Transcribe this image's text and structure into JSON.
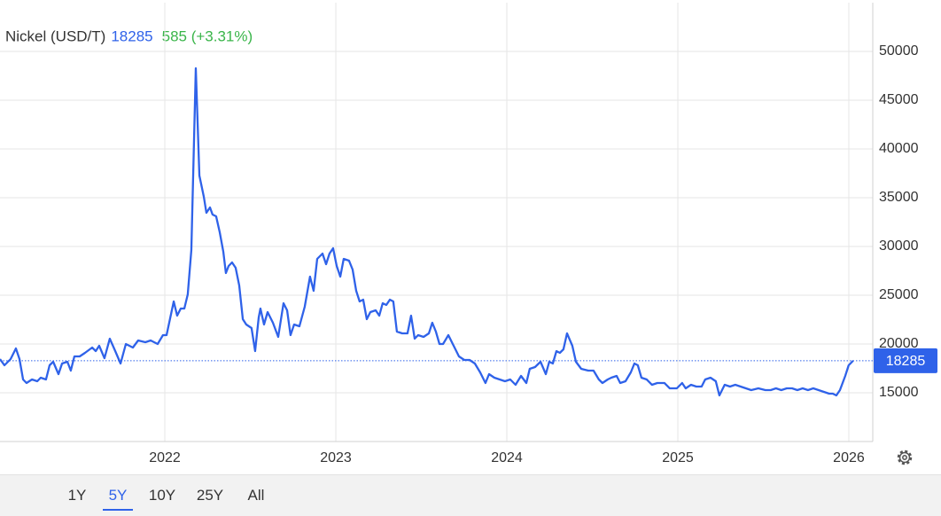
{
  "chart_data": {
    "type": "line",
    "title": "Nickel (USD/T)",
    "change": "585 (+3.31%)",
    "xlim": [
      2021.036,
      2026.14
    ],
    "xticks": [
      2022,
      2023,
      2024,
      2025,
      2026
    ],
    "ylim": [
      10000,
      55000
    ],
    "yticks": [
      15000,
      20000,
      25000,
      30000,
      35000,
      40000,
      45000,
      50000
    ],
    "grid": true,
    "ranges": [
      "1Y",
      "5Y",
      "10Y",
      "25Y",
      "All"
    ],
    "selected_range": 1,
    "series": [
      {
        "name": "Nickel (USD/T)",
        "color": "#2f62e9",
        "x": [
          2021.036,
          2021.062,
          2021.098,
          2021.129,
          2021.15,
          2021.171,
          2021.191,
          2021.223,
          2021.254,
          2021.274,
          2021.305,
          2021.326,
          2021.347,
          2021.378,
          2021.399,
          2021.43,
          2021.45,
          2021.471,
          2021.502,
          2021.533,
          2021.575,
          2021.596,
          2021.616,
          2021.647,
          2021.678,
          2021.71,
          2021.741,
          2021.772,
          2021.813,
          2021.844,
          2021.886,
          2021.917,
          2021.958,
          2021.989,
          2022.01,
          2022.052,
          2022.072,
          2022.093,
          2022.114,
          2022.134,
          2022.155,
          2022.181,
          2022.202,
          2022.228,
          2022.243,
          2022.264,
          2022.279,
          2022.3,
          2022.321,
          2022.342,
          2022.357,
          2022.373,
          2022.393,
          2022.414,
          2022.435,
          2022.456,
          2022.476,
          2022.507,
          2022.528,
          2022.549,
          2022.559,
          2022.58,
          2022.601,
          2022.632,
          2022.663,
          2022.694,
          2022.715,
          2022.735,
          2022.756,
          2022.787,
          2022.818,
          2022.849,
          2022.87,
          2022.891,
          2022.922,
          2022.943,
          2022.963,
          2022.984,
          2023.005,
          2023.026,
          2023.046,
          2023.077,
          2023.098,
          2023.119,
          2023.139,
          2023.16,
          2023.181,
          2023.202,
          2023.233,
          2023.254,
          2023.274,
          2023.295,
          2023.316,
          2023.336,
          2023.357,
          2023.388,
          2023.419,
          2023.44,
          2023.461,
          2023.481,
          2023.513,
          2023.544,
          2023.564,
          2023.585,
          2023.606,
          2023.627,
          2023.658,
          2023.689,
          2023.72,
          2023.751,
          2023.782,
          2023.813,
          2023.844,
          2023.875,
          2023.896,
          2023.927,
          2023.958,
          2023.989,
          2024.02,
          2024.051,
          2024.083,
          2024.114,
          2024.134,
          2024.165,
          2024.197,
          2024.228,
          2024.248,
          2024.269,
          2024.29,
          2024.31,
          2024.331,
          2024.352,
          2024.383,
          2024.404,
          2024.435,
          2024.476,
          2024.507,
          2024.538,
          2024.559,
          2024.59,
          2024.611,
          2024.642,
          2024.663,
          2024.694,
          2024.725,
          2024.746,
          2024.766,
          2024.787,
          2024.818,
          2024.849,
          2024.88,
          2024.922,
          2024.953,
          2024.994,
          2025.025,
          2025.046,
          2025.077,
          2025.108,
          2025.139,
          2025.16,
          2025.191,
          2025.222,
          2025.243,
          2025.274,
          2025.305,
          2025.336,
          2025.367,
          2025.398,
          2025.429,
          2025.471,
          2025.512,
          2025.543,
          2025.574,
          2025.605,
          2025.637,
          2025.668,
          2025.699,
          2025.73,
          2025.761,
          2025.792,
          2025.823,
          2025.854,
          2025.885,
          2025.906,
          2025.927,
          2025.948,
          2025.979,
          2025.999,
          2026.025
        ],
        "values": [
          18455,
          17818,
          18455,
          19546,
          18455,
          16364,
          16000,
          16364,
          16182,
          16545,
          16364,
          17818,
          18182,
          16909,
          18000,
          18182,
          17273,
          18727,
          18727,
          19091,
          19636,
          19273,
          19818,
          18545,
          20546,
          19273,
          18000,
          20000,
          19636,
          20364,
          20182,
          20364,
          20000,
          20909,
          20909,
          24364,
          22909,
          23636,
          23636,
          25091,
          29636,
          48273,
          37273,
          35091,
          33455,
          34000,
          33273,
          33091,
          31455,
          29455,
          27273,
          28000,
          28364,
          27818,
          26000,
          22546,
          22000,
          21636,
          19273,
          22727,
          23636,
          22000,
          23273,
          22182,
          20727,
          24182,
          23455,
          20909,
          22000,
          21818,
          23818,
          26909,
          25455,
          28727,
          29273,
          28182,
          29273,
          29818,
          28000,
          26909,
          28727,
          28546,
          27636,
          25455,
          24364,
          24546,
          22546,
          23273,
          23455,
          22909,
          24182,
          24000,
          24546,
          24364,
          21273,
          21091,
          21091,
          22909,
          20546,
          20909,
          20727,
          21091,
          22182,
          21273,
          20000,
          20000,
          20909,
          19818,
          18727,
          18364,
          18364,
          18000,
          17091,
          16000,
          16909,
          16546,
          16364,
          16182,
          16364,
          15818,
          16727,
          16000,
          17455,
          17636,
          18182,
          16909,
          18182,
          18000,
          19273,
          19091,
          19455,
          21091,
          19818,
          18182,
          17455,
          17273,
          17273,
          16364,
          16000,
          16364,
          16546,
          16727,
          16000,
          16182,
          17091,
          18000,
          17818,
          16546,
          16364,
          15818,
          16000,
          16000,
          15455,
          15455,
          16000,
          15455,
          15818,
          15636,
          15636,
          16364,
          16546,
          16182,
          14727,
          15818,
          15636,
          15818,
          15636,
          15455,
          15273,
          15455,
          15273,
          15273,
          15455,
          15273,
          15455,
          15455,
          15273,
          15455,
          15273,
          15455,
          15273,
          15091,
          14909,
          14909,
          14727,
          15273,
          16727,
          17818,
          18285
        ]
      }
    ]
  }
}
